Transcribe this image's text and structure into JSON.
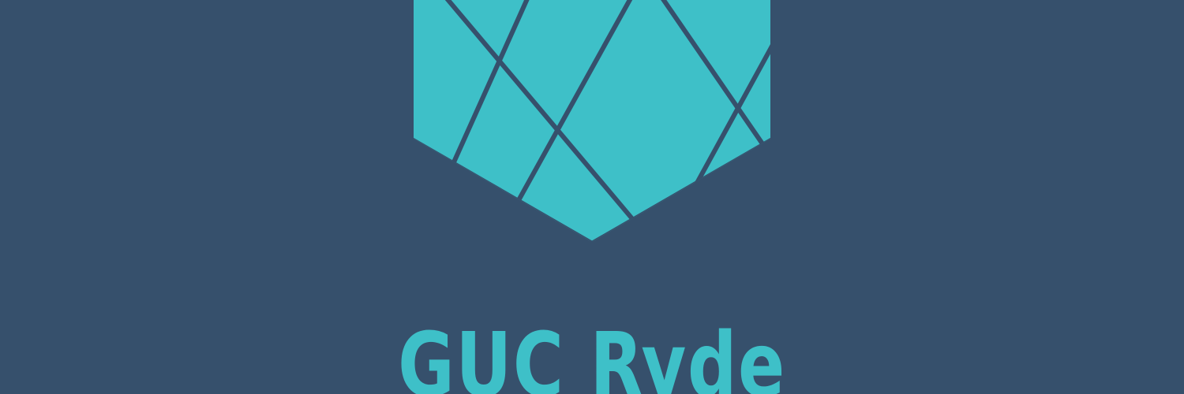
{
  "colors": {
    "background": "#36506c",
    "accent": "#3ec0c8"
  },
  "logo": {
    "icon": "faceted-shield-icon",
    "wordmark": "GUC Ryde"
  }
}
